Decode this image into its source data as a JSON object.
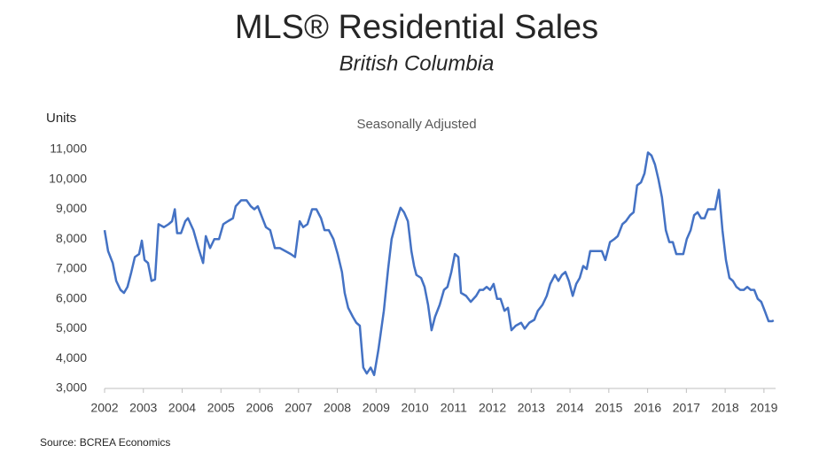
{
  "chart_data": {
    "type": "line",
    "title": "MLS® Residential Sales",
    "subtitle": "British Columbia",
    "annotation": "Seasonally Adjusted",
    "y_label": "Units",
    "source": "Source: BCREA Economics",
    "xlim": [
      2002,
      2019.3
    ],
    "xticks": [
      2002,
      2003,
      2004,
      2005,
      2006,
      2007,
      2008,
      2009,
      2010,
      2011,
      2012,
      2013,
      2014,
      2015,
      2016,
      2017,
      2018,
      2019
    ],
    "ylim": [
      3000,
      11000
    ],
    "yticks": [
      {
        "value": 3000,
        "label": "3,000"
      },
      {
        "value": 4000,
        "label": "4,000"
      },
      {
        "value": 5000,
        "label": "5,000"
      },
      {
        "value": 6000,
        "label": "6,000"
      },
      {
        "value": 7000,
        "label": "7,000"
      },
      {
        "value": 8000,
        "label": "8,000"
      },
      {
        "value": 9000,
        "label": "9,000"
      },
      {
        "value": 10000,
        "label": "10,000"
      },
      {
        "value": 11000,
        "label": "11,000"
      }
    ],
    "grid": false,
    "x": [
      2002.0,
      2002.09,
      2002.21,
      2002.3,
      2002.41,
      2002.5,
      2002.59,
      2002.69,
      2002.78,
      2002.89,
      2002.96,
      2003.03,
      2003.12,
      2003.21,
      2003.3,
      2003.39,
      2003.53,
      2003.65,
      2003.74,
      2003.81,
      2003.87,
      2003.97,
      2004.08,
      2004.15,
      2004.29,
      2004.42,
      2004.54,
      2004.61,
      2004.72,
      2004.83,
      2004.95,
      2005.06,
      2005.18,
      2005.31,
      2005.38,
      2005.52,
      2005.66,
      2005.77,
      2005.86,
      2005.95,
      2006.07,
      2006.16,
      2006.27,
      2006.39,
      2006.52,
      2006.66,
      2006.8,
      2006.91,
      2007.03,
      2007.12,
      2007.23,
      2007.35,
      2007.46,
      2007.58,
      2007.67,
      2007.78,
      2007.9,
      2008.01,
      2008.12,
      2008.19,
      2008.28,
      2008.4,
      2008.49,
      2008.58,
      2008.67,
      2008.76,
      2008.86,
      2008.95,
      2009.06,
      2009.2,
      2009.31,
      2009.4,
      2009.52,
      2009.63,
      2009.72,
      2009.82,
      2009.91,
      2009.98,
      2010.04,
      2010.16,
      2010.25,
      2010.34,
      2010.43,
      2010.52,
      2010.64,
      2010.75,
      2010.84,
      2010.94,
      2011.03,
      2011.12,
      2011.19,
      2011.32,
      2011.44,
      2011.58,
      2011.67,
      2011.76,
      2011.85,
      2011.94,
      2012.03,
      2012.12,
      2012.21,
      2012.31,
      2012.4,
      2012.49,
      2012.6,
      2012.74,
      2012.83,
      2012.95,
      2013.08,
      2013.17,
      2013.29,
      2013.4,
      2013.49,
      2013.61,
      2013.7,
      2013.79,
      2013.88,
      2013.97,
      2014.07,
      2014.16,
      2014.25,
      2014.34,
      2014.43,
      2014.52,
      2014.64,
      2014.73,
      2014.82,
      2014.91,
      2015.03,
      2015.14,
      2015.23,
      2015.35,
      2015.44,
      2015.55,
      2015.64,
      2015.73,
      2015.83,
      2015.92,
      2016.01,
      2016.1,
      2016.19,
      2016.28,
      2016.37,
      2016.47,
      2016.56,
      2016.65,
      2016.74,
      2016.83,
      2016.92,
      2017.01,
      2017.11,
      2017.2,
      2017.29,
      2017.38,
      2017.47,
      2017.56,
      2017.65,
      2017.74,
      2017.84,
      2017.93,
      2018.02,
      2018.11,
      2018.2,
      2018.29,
      2018.39,
      2018.48,
      2018.57,
      2018.66,
      2018.75,
      2018.84,
      2018.93,
      2019.02,
      2019.12,
      2019.21,
      2019.25
    ],
    "series": [
      {
        "name": "MLS Residential Sales",
        "color": "#4472c4",
        "values": [
          8300,
          7600,
          7200,
          6600,
          6300,
          6200,
          6400,
          6900,
          7400,
          7500,
          7950,
          7300,
          7200,
          6600,
          6650,
          8500,
          8400,
          8500,
          8600,
          9000,
          8200,
          8200,
          8600,
          8700,
          8300,
          7700,
          7200,
          8100,
          7700,
          8000,
          8000,
          8500,
          8600,
          8700,
          9100,
          9300,
          9300,
          9100,
          9000,
          9100,
          8700,
          8400,
          8300,
          7700,
          7700,
          7600,
          7500,
          7400,
          8600,
          8400,
          8500,
          9000,
          9000,
          8700,
          8300,
          8300,
          8000,
          7500,
          6900,
          6200,
          5700,
          5400,
          5200,
          5100,
          3700,
          3500,
          3700,
          3450,
          4300,
          5600,
          7000,
          8000,
          8600,
          9050,
          8900,
          8600,
          7600,
          7100,
          6800,
          6700,
          6400,
          5800,
          4950,
          5400,
          5800,
          6300,
          6400,
          6900,
          7500,
          7400,
          6200,
          6100,
          5900,
          6100,
          6300,
          6300,
          6400,
          6300,
          6500,
          6000,
          6000,
          5600,
          5700,
          4950,
          5100,
          5200,
          5000,
          5200,
          5300,
          5600,
          5800,
          6100,
          6500,
          6800,
          6600,
          6800,
          6900,
          6600,
          6100,
          6500,
          6700,
          7100,
          7000,
          7600,
          7600,
          7600,
          7600,
          7300,
          7900,
          8000,
          8100,
          8500,
          8600,
          8800,
          8900,
          9800,
          9900,
          10200,
          10900,
          10800,
          10500,
          10000,
          9400,
          8300,
          7900,
          7900,
          7500,
          7500,
          7500,
          8000,
          8300,
          8800,
          8900,
          8700,
          8700,
          9000,
          9000,
          9000,
          9650,
          8300,
          7300,
          6700,
          6600,
          6400,
          6300,
          6300,
          6400,
          6300,
          6300,
          6000,
          5900,
          5600,
          5250,
          5250,
          5280
        ]
      }
    ]
  }
}
